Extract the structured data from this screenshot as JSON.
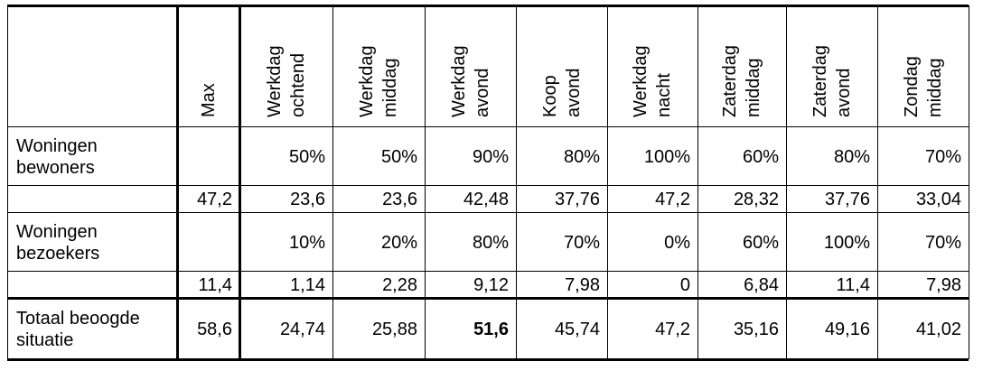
{
  "columns": [
    "Max",
    "Werkdag\nochtend",
    "Werkdag\nmiddag",
    "Werkdag\navond",
    "Koop\navond",
    "Werkdag\nnacht",
    "Zaterdag\nmiddag",
    "Zaterdag\navond",
    "Zondag\nmiddag"
  ],
  "column_lines": [
    [
      "Max"
    ],
    [
      "Werkdag",
      "ochtend"
    ],
    [
      "Werkdag",
      "middag"
    ],
    [
      "Werkdag",
      "avond"
    ],
    [
      "Koop",
      "avond"
    ],
    [
      "Werkdag",
      "nacht"
    ],
    [
      "Zaterdag",
      "middag"
    ],
    [
      "Zaterdag",
      "avond"
    ],
    [
      "Zondag",
      "middag"
    ]
  ],
  "rows": [
    {
      "label_lines": [
        "Woningen",
        "bewoners"
      ],
      "cells": [
        "",
        "50%",
        "50%",
        "90%",
        "80%",
        "100%",
        "60%",
        "80%",
        "70%"
      ]
    },
    {
      "label_lines": [],
      "cells": [
        "47,2",
        "23,6",
        "23,6",
        "42,48",
        "37,76",
        "47,2",
        "28,32",
        "37,76",
        "33,04"
      ]
    },
    {
      "label_lines": [
        "Woningen",
        "bezoekers"
      ],
      "cells": [
        "",
        "10%",
        "20%",
        "80%",
        "70%",
        "0%",
        "60%",
        "100%",
        "70%"
      ]
    },
    {
      "label_lines": [],
      "cells": [
        "11,4",
        "1,14",
        "2,28",
        "9,12",
        "7,98",
        "0",
        "6,84",
        "11,4",
        "7,98"
      ]
    },
    {
      "label_lines": [
        "Totaal beoogde",
        "situatie"
      ],
      "cells": [
        "58,6",
        "24,74",
        "25,88",
        "51,6",
        "45,74",
        "47,2",
        "35,16",
        "49,16",
        "41,02"
      ],
      "bold_index": 3
    }
  ]
}
